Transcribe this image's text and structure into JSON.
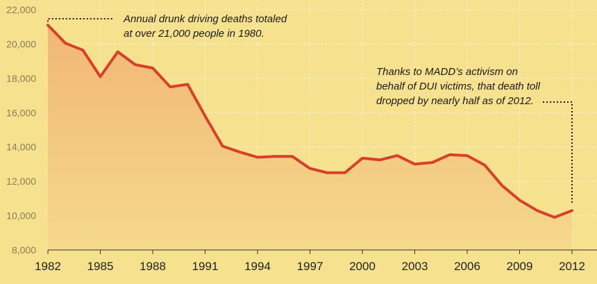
{
  "chart_data": {
    "type": "area",
    "title": "",
    "xlabel": "",
    "ylabel": "",
    "x": [
      1982,
      1983,
      1984,
      1985,
      1986,
      1987,
      1988,
      1989,
      1990,
      1991,
      1992,
      1993,
      1994,
      1995,
      1996,
      1997,
      1998,
      1999,
      2000,
      2001,
      2002,
      2003,
      2004,
      2005,
      2006,
      2007,
      2008,
      2009,
      2010,
      2011,
      2012
    ],
    "series": [
      {
        "values": [
          21100,
          20050,
          19650,
          18100,
          19550,
          18800,
          18600,
          17500,
          17650,
          15800,
          14050,
          13700,
          13400,
          13450,
          13450,
          12750,
          12500,
          12500,
          13350,
          13250,
          13500,
          13000,
          13100,
          13550,
          13500,
          12950,
          11750,
          10900,
          10300,
          9900,
          10300
        ]
      }
    ],
    "xlim": [
      1982,
      2012
    ],
    "ylim": [
      8000,
      22000
    ],
    "x_ticks": [
      "1982",
      "1985",
      "1988",
      "1991",
      "1994",
      "1997",
      "2000",
      "2003",
      "2006",
      "2009",
      "2012"
    ],
    "y_ticks": [
      "8,000",
      "10,000",
      "12,000",
      "14,000",
      "16,000",
      "18,000",
      "20,000",
      "22,000"
    ],
    "grid": true,
    "legend": "none",
    "annotations": [
      {
        "lines": [
          "Annual drunk driving deaths totaled",
          "at over 21,000 people in 1980."
        ],
        "points_to": {
          "x": 1982,
          "y": 21100
        }
      },
      {
        "lines": [
          "Thanks to MADD’s activism on",
          "behalf of DUI victims, that death toll",
          "dropped by nearly half as of 2012."
        ],
        "points_to": {
          "x": 2012,
          "y": 10300
        }
      }
    ],
    "colors": {
      "background": "#f5e18e",
      "line": "#d8402a",
      "area_top": "#f1b675",
      "area_bottom": "#f5d98c",
      "grid": "#ffffff"
    }
  }
}
